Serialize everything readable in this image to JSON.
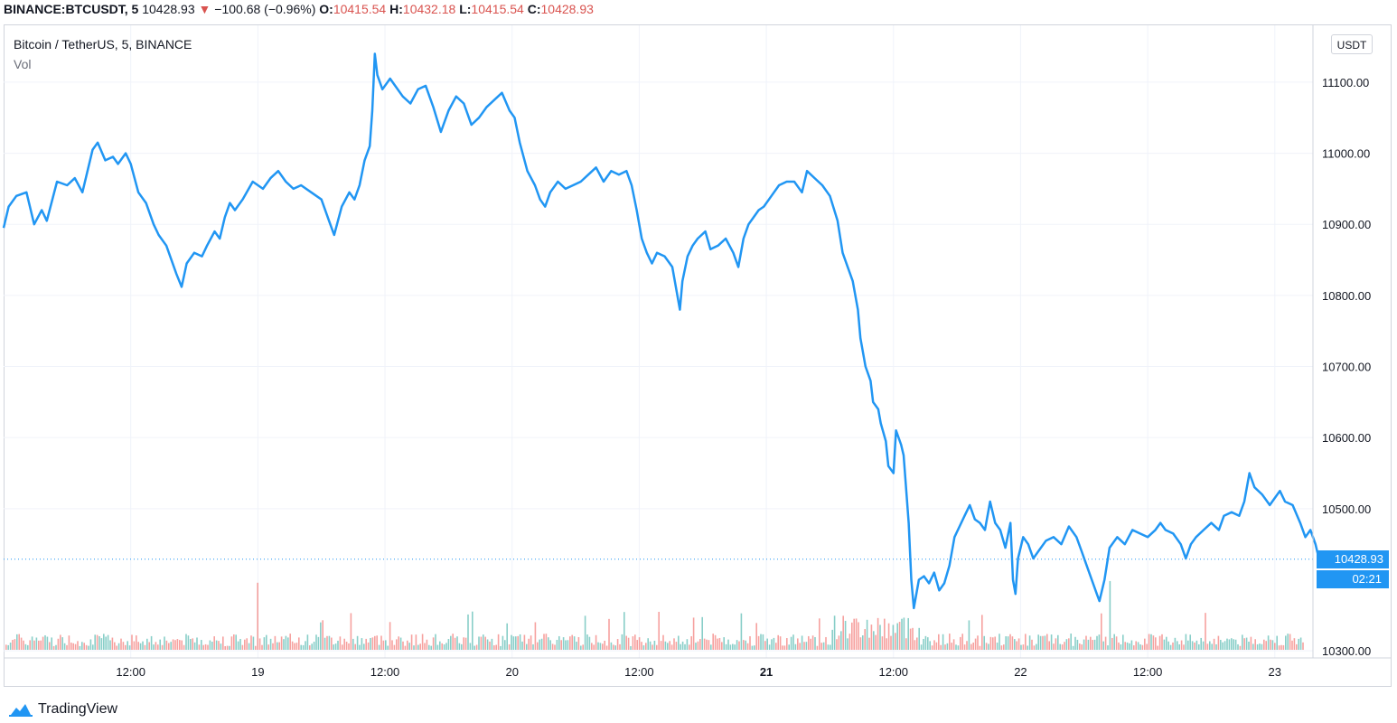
{
  "header": {
    "symbol": "BINANCE:BTCUSDT, 5",
    "last_price": "10428.93",
    "change_arrow": "▼",
    "change": "−100.68 (−0.96%)",
    "open_label": "O:",
    "open": "10415.54",
    "high_label": "H:",
    "high": "10432.18",
    "low_label": "L:",
    "low": "10415.54",
    "close_label": "C:",
    "close": "10428.93"
  },
  "legend": {
    "title": "Bitcoin / TetherUS, 5, BINANCE",
    "vol_label": "Vol"
  },
  "price_axis": {
    "currency": "USDT",
    "last_price_tag": "10428.93",
    "countdown": "02:21"
  },
  "brand": {
    "name": "TradingView",
    "icon": "tradingview-cloud-icon"
  },
  "colors": {
    "line": "#2196f3",
    "vol_up": "#26a69a",
    "vol_down": "#ef5350",
    "grid": "#f0f3fa",
    "neg_text": "#d9534f"
  },
  "chart_data": {
    "type": "line",
    "title": "Bitcoin / TetherUS, 5, BINANCE",
    "xlabel": "",
    "ylabel": "",
    "ylim": [
      10290,
      11180
    ],
    "xlim": [
      0,
      5.15
    ],
    "x_ticks": [
      {
        "t": 0.5,
        "label": "12:00",
        "bold": false
      },
      {
        "t": 1.0,
        "label": "19",
        "bold": false
      },
      {
        "t": 1.5,
        "label": "12:00",
        "bold": false
      },
      {
        "t": 2.0,
        "label": "20",
        "bold": false
      },
      {
        "t": 2.5,
        "label": "12:00",
        "bold": false
      },
      {
        "t": 3.0,
        "label": "21",
        "bold": true
      },
      {
        "t": 3.5,
        "label": "12:00",
        "bold": false
      },
      {
        "t": 4.0,
        "label": "22",
        "bold": false
      },
      {
        "t": 4.5,
        "label": "12:00",
        "bold": false
      },
      {
        "t": 5.0,
        "label": "23",
        "bold": false
      }
    ],
    "y_ticks": [
      {
        "v": 11100,
        "label": "11100.00"
      },
      {
        "v": 11000,
        "label": "11000.00"
      },
      {
        "v": 10900,
        "label": "10900.00"
      },
      {
        "v": 10800,
        "label": "10800.00"
      },
      {
        "v": 10700,
        "label": "10700.00"
      },
      {
        "v": 10600,
        "label": "10600.00"
      },
      {
        "v": 10500,
        "label": "10500.00"
      },
      {
        "v": 10300,
        "label": "10300.00"
      }
    ],
    "last_value": 10428.93,
    "grid": true,
    "series": [
      {
        "values_xy": [
          [
            0.0,
            10895
          ],
          [
            0.02,
            10925
          ],
          [
            0.05,
            10940
          ],
          [
            0.09,
            10945
          ],
          [
            0.12,
            10900
          ],
          [
            0.15,
            10920
          ],
          [
            0.17,
            10905
          ],
          [
            0.21,
            10960
          ],
          [
            0.25,
            10955
          ],
          [
            0.28,
            10965
          ],
          [
            0.31,
            10945
          ],
          [
            0.35,
            11005
          ],
          [
            0.37,
            11015
          ],
          [
            0.4,
            10990
          ],
          [
            0.43,
            10995
          ],
          [
            0.45,
            10985
          ],
          [
            0.48,
            11000
          ],
          [
            0.5,
            10985
          ],
          [
            0.53,
            10945
          ],
          [
            0.56,
            10930
          ],
          [
            0.59,
            10900
          ],
          [
            0.61,
            10885
          ],
          [
            0.64,
            10870
          ],
          [
            0.66,
            10850
          ],
          [
            0.68,
            10830
          ],
          [
            0.7,
            10812
          ],
          [
            0.72,
            10845
          ],
          [
            0.75,
            10860
          ],
          [
            0.78,
            10855
          ],
          [
            0.8,
            10870
          ],
          [
            0.83,
            10890
          ],
          [
            0.85,
            10880
          ],
          [
            0.87,
            10910
          ],
          [
            0.89,
            10930
          ],
          [
            0.91,
            10920
          ],
          [
            0.94,
            10935
          ],
          [
            0.98,
            10960
          ],
          [
            1.02,
            10950
          ],
          [
            1.05,
            10965
          ],
          [
            1.08,
            10975
          ],
          [
            1.11,
            10960
          ],
          [
            1.14,
            10950
          ],
          [
            1.17,
            10955
          ],
          [
            1.21,
            10945
          ],
          [
            1.25,
            10935
          ],
          [
            1.28,
            10905
          ],
          [
            1.3,
            10885
          ],
          [
            1.33,
            10925
          ],
          [
            1.36,
            10945
          ],
          [
            1.38,
            10935
          ],
          [
            1.4,
            10955
          ],
          [
            1.42,
            10990
          ],
          [
            1.44,
            11010
          ],
          [
            1.45,
            11060
          ],
          [
            1.46,
            11140
          ],
          [
            1.47,
            11110
          ],
          [
            1.49,
            11090
          ],
          [
            1.52,
            11105
          ],
          [
            1.54,
            11095
          ],
          [
            1.57,
            11080
          ],
          [
            1.6,
            11070
          ],
          [
            1.63,
            11090
          ],
          [
            1.66,
            11095
          ],
          [
            1.69,
            11065
          ],
          [
            1.72,
            11030
          ],
          [
            1.75,
            11060
          ],
          [
            1.78,
            11080
          ],
          [
            1.81,
            11070
          ],
          [
            1.84,
            11040
          ],
          [
            1.87,
            11050
          ],
          [
            1.9,
            11065
          ],
          [
            1.93,
            11075
          ],
          [
            1.96,
            11085
          ],
          [
            1.99,
            11060
          ],
          [
            2.01,
            11050
          ],
          [
            2.03,
            11015
          ],
          [
            2.06,
            10975
          ],
          [
            2.09,
            10955
          ],
          [
            2.11,
            10935
          ],
          [
            2.13,
            10925
          ],
          [
            2.15,
            10945
          ],
          [
            2.18,
            10960
          ],
          [
            2.21,
            10950
          ],
          [
            2.24,
            10955
          ],
          [
            2.27,
            10960
          ],
          [
            2.3,
            10970
          ],
          [
            2.33,
            10980
          ],
          [
            2.36,
            10960
          ],
          [
            2.39,
            10975
          ],
          [
            2.42,
            10970
          ],
          [
            2.45,
            10975
          ],
          [
            2.47,
            10955
          ],
          [
            2.49,
            10920
          ],
          [
            2.51,
            10880
          ],
          [
            2.53,
            10860
          ],
          [
            2.55,
            10845
          ],
          [
            2.57,
            10860
          ],
          [
            2.6,
            10855
          ],
          [
            2.63,
            10840
          ],
          [
            2.65,
            10800
          ],
          [
            2.66,
            10780
          ],
          [
            2.67,
            10820
          ],
          [
            2.69,
            10855
          ],
          [
            2.71,
            10870
          ],
          [
            2.73,
            10880
          ],
          [
            2.76,
            10890
          ],
          [
            2.78,
            10865
          ],
          [
            2.81,
            10870
          ],
          [
            2.84,
            10880
          ],
          [
            2.87,
            10860
          ],
          [
            2.89,
            10840
          ],
          [
            2.91,
            10880
          ],
          [
            2.93,
            10900
          ],
          [
            2.95,
            10910
          ],
          [
            2.97,
            10920
          ],
          [
            2.99,
            10925
          ],
          [
            3.02,
            10940
          ],
          [
            3.05,
            10955
          ],
          [
            3.08,
            10960
          ],
          [
            3.11,
            10960
          ],
          [
            3.14,
            10945
          ],
          [
            3.16,
            10975
          ],
          [
            3.19,
            10965
          ],
          [
            3.22,
            10955
          ],
          [
            3.25,
            10940
          ],
          [
            3.28,
            10905
          ],
          [
            3.3,
            10860
          ],
          [
            3.32,
            10840
          ],
          [
            3.34,
            10820
          ],
          [
            3.36,
            10780
          ],
          [
            3.37,
            10740
          ],
          [
            3.39,
            10700
          ],
          [
            3.41,
            10680
          ],
          [
            3.42,
            10650
          ],
          [
            3.44,
            10640
          ],
          [
            3.45,
            10620
          ],
          [
            3.47,
            10595
          ],
          [
            3.48,
            10560
          ],
          [
            3.5,
            10550
          ],
          [
            3.51,
            10610
          ],
          [
            3.53,
            10590
          ],
          [
            3.54,
            10575
          ],
          [
            3.56,
            10480
          ],
          [
            3.57,
            10400
          ],
          [
            3.58,
            10360
          ],
          [
            3.6,
            10400
          ],
          [
            3.62,
            10405
          ],
          [
            3.64,
            10395
          ],
          [
            3.66,
            10410
          ],
          [
            3.68,
            10385
          ],
          [
            3.7,
            10395
          ],
          [
            3.72,
            10420
          ],
          [
            3.74,
            10460
          ],
          [
            3.76,
            10475
          ],
          [
            3.78,
            10490
          ],
          [
            3.8,
            10505
          ],
          [
            3.82,
            10485
          ],
          [
            3.84,
            10480
          ],
          [
            3.86,
            10470
          ],
          [
            3.88,
            10510
          ],
          [
            3.9,
            10480
          ],
          [
            3.92,
            10470
          ],
          [
            3.94,
            10445
          ],
          [
            3.96,
            10480
          ],
          [
            3.97,
            10400
          ],
          [
            3.98,
            10380
          ],
          [
            3.99,
            10430
          ],
          [
            4.01,
            10460
          ],
          [
            4.03,
            10450
          ],
          [
            4.05,
            10430
          ],
          [
            4.07,
            10440
          ],
          [
            4.1,
            10455
          ],
          [
            4.13,
            10460
          ],
          [
            4.16,
            10450
          ],
          [
            4.19,
            10475
          ],
          [
            4.22,
            10460
          ],
          [
            4.24,
            10440
          ],
          [
            4.26,
            10420
          ],
          [
            4.28,
            10400
          ],
          [
            4.3,
            10380
          ],
          [
            4.31,
            10370
          ],
          [
            4.33,
            10400
          ],
          [
            4.35,
            10445
          ],
          [
            4.38,
            10460
          ],
          [
            4.41,
            10450
          ],
          [
            4.44,
            10470
          ],
          [
            4.47,
            10465
          ],
          [
            4.5,
            10460
          ],
          [
            4.53,
            10470
          ],
          [
            4.55,
            10480
          ],
          [
            4.57,
            10470
          ],
          [
            4.6,
            10465
          ],
          [
            4.63,
            10450
          ],
          [
            4.65,
            10430
          ],
          [
            4.67,
            10450
          ],
          [
            4.69,
            10460
          ],
          [
            4.72,
            10470
          ],
          [
            4.75,
            10480
          ],
          [
            4.78,
            10470
          ],
          [
            4.8,
            10490
          ],
          [
            4.83,
            10495
          ],
          [
            4.86,
            10490
          ],
          [
            4.88,
            10510
          ],
          [
            4.9,
            10550
          ],
          [
            4.92,
            10530
          ],
          [
            4.95,
            10520
          ],
          [
            4.98,
            10505
          ],
          [
            5.0,
            10515
          ],
          [
            5.02,
            10525
          ],
          [
            5.04,
            10510
          ],
          [
            5.07,
            10505
          ],
          [
            5.1,
            10480
          ],
          [
            5.12,
            10460
          ],
          [
            5.14,
            10470
          ],
          [
            5.16,
            10450
          ],
          [
            5.18,
            10420
          ]
        ]
      }
    ]
  }
}
